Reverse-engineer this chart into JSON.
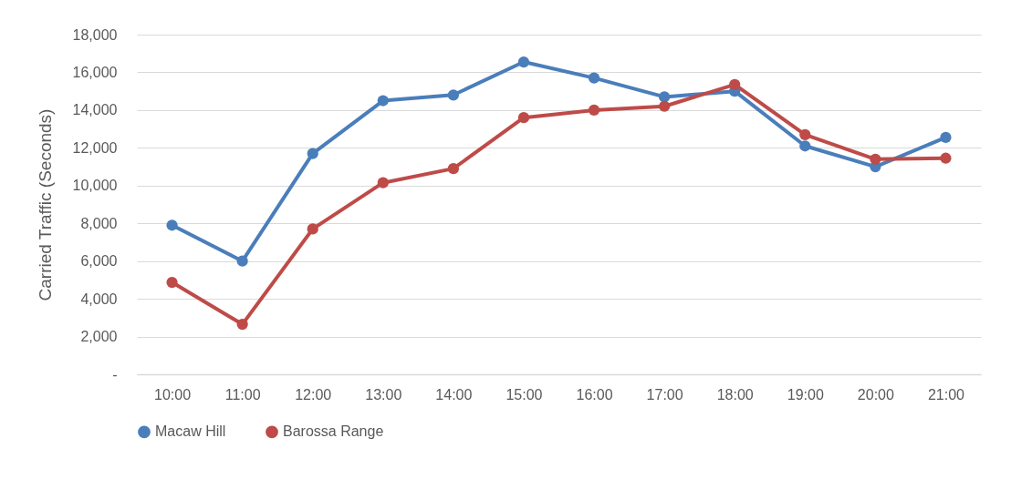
{
  "chart_data": {
    "type": "line",
    "ylabel": "Carried Traffic (Seconds)",
    "categories": [
      "10:00",
      "11:00",
      "12:00",
      "13:00",
      "14:00",
      "15:00",
      "16:00",
      "17:00",
      "18:00",
      "19:00",
      "20:00",
      "21:00"
    ],
    "series": [
      {
        "name": "Macaw Hill",
        "color": "#4a7ebb",
        "values": [
          7900,
          6000,
          11700,
          14500,
          14800,
          16550,
          15700,
          14700,
          15000,
          12100,
          11000,
          12550
        ]
      },
      {
        "name": "Barossa Range",
        "color": "#be4b48",
        "values": [
          4870,
          2650,
          7700,
          10150,
          10900,
          13600,
          14000,
          14200,
          15350,
          12700,
          11400,
          11450
        ]
      }
    ],
    "ylim": [
      0,
      18000
    ],
    "yticks": [
      {
        "value": 0,
        "label": "-"
      },
      {
        "value": 2000,
        "label": "2,000"
      },
      {
        "value": 4000,
        "label": "4,000"
      },
      {
        "value": 6000,
        "label": "6,000"
      },
      {
        "value": 8000,
        "label": "8,000"
      },
      {
        "value": 10000,
        "label": "10,000"
      },
      {
        "value": 12000,
        "label": "12,000"
      },
      {
        "value": 14000,
        "label": "14,000"
      },
      {
        "value": 16000,
        "label": "16,000"
      },
      {
        "value": 18000,
        "label": "18,000"
      }
    ],
    "grid": "y",
    "legend": "bottom",
    "marker": "circle",
    "line_style": "solid"
  }
}
